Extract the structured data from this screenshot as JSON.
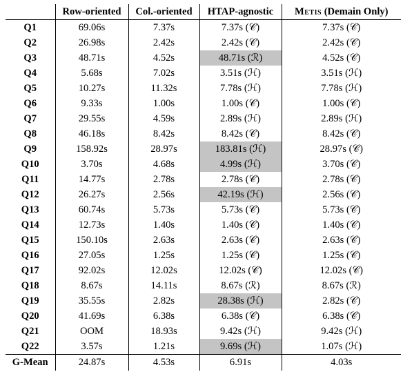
{
  "headers": {
    "query": "",
    "row": "Row-oriented",
    "col": "Col.-oriented",
    "htap": "HTAP-agnostic",
    "metis_name": "Metis",
    "metis_suffix": " (Demain Only)"
  },
  "rows": [
    {
      "q": "Q1",
      "row": "69.06s",
      "col": "7.37s",
      "htap": "7.37s",
      "htap_mark": "C",
      "htap_hl": false,
      "metis": "7.37s",
      "metis_mark": "C"
    },
    {
      "q": "Q2",
      "row": "26.98s",
      "col": "2.42s",
      "htap": "2.42s",
      "htap_mark": "C",
      "htap_hl": false,
      "metis": "2.42s",
      "metis_mark": "C"
    },
    {
      "q": "Q3",
      "row": "48.71s",
      "col": "4.52s",
      "htap": "48.71s",
      "htap_mark": "R",
      "htap_hl": true,
      "metis": "4.52s",
      "metis_mark": "C"
    },
    {
      "q": "Q4",
      "row": "5.68s",
      "col": "7.02s",
      "htap": "3.51s",
      "htap_mark": "H",
      "htap_hl": false,
      "metis": "3.51s",
      "metis_mark": "H"
    },
    {
      "q": "Q5",
      "row": "10.27s",
      "col": "11.32s",
      "htap": "7.78s",
      "htap_mark": "H",
      "htap_hl": false,
      "metis": "7.78s",
      "metis_mark": "H"
    },
    {
      "q": "Q6",
      "row": "9.33s",
      "col": "1.00s",
      "htap": "1.00s",
      "htap_mark": "C",
      "htap_hl": false,
      "metis": "1.00s",
      "metis_mark": "C"
    },
    {
      "q": "Q7",
      "row": "29.55s",
      "col": "4.59s",
      "htap": "2.89s",
      "htap_mark": "H",
      "htap_hl": false,
      "metis": "2.89s",
      "metis_mark": "H"
    },
    {
      "q": "Q8",
      "row": "46.18s",
      "col": "8.42s",
      "htap": "8.42s",
      "htap_mark": "C",
      "htap_hl": false,
      "metis": "8.42s",
      "metis_mark": "C"
    },
    {
      "q": "Q9",
      "row": "158.92s",
      "col": "28.97s",
      "htap": "183.81s",
      "htap_mark": "H",
      "htap_hl": true,
      "metis": "28.97s",
      "metis_mark": "C"
    },
    {
      "q": "Q10",
      "row": "3.70s",
      "col": "4.68s",
      "htap": "4.99s",
      "htap_mark": "H",
      "htap_hl": true,
      "metis": "3.70s",
      "metis_mark": "C"
    },
    {
      "q": "Q11",
      "row": "14.77s",
      "col": "2.78s",
      "htap": "2.78s",
      "htap_mark": "C",
      "htap_hl": false,
      "metis": "2.78s",
      "metis_mark": "C"
    },
    {
      "q": "Q12",
      "row": "26.27s",
      "col": "2.56s",
      "htap": "42.19s",
      "htap_mark": "H",
      "htap_hl": true,
      "metis": "2.56s",
      "metis_mark": "C"
    },
    {
      "q": "Q13",
      "row": "60.74s",
      "col": "5.73s",
      "htap": "5.73s",
      "htap_mark": "C",
      "htap_hl": false,
      "metis": "5.73s",
      "metis_mark": "C"
    },
    {
      "q": "Q14",
      "row": "12.73s",
      "col": "1.40s",
      "htap": "1.40s",
      "htap_mark": "C",
      "htap_hl": false,
      "metis": "1.40s",
      "metis_mark": "C"
    },
    {
      "q": "Q15",
      "row": "150.10s",
      "col": "2.63s",
      "htap": "2.63s",
      "htap_mark": "C",
      "htap_hl": false,
      "metis": "2.63s",
      "metis_mark": "C"
    },
    {
      "q": "Q16",
      "row": "27.05s",
      "col": "1.25s",
      "htap": "1.25s",
      "htap_mark": "C",
      "htap_hl": false,
      "metis": "1.25s",
      "metis_mark": "C"
    },
    {
      "q": "Q17",
      "row": "92.02s",
      "col": "12.02s",
      "htap": "12.02s",
      "htap_mark": "C",
      "htap_hl": false,
      "metis": "12.02s",
      "metis_mark": "C"
    },
    {
      "q": "Q18",
      "row": "8.67s",
      "col": "14.11s",
      "htap": "8.67s",
      "htap_mark": "R",
      "htap_hl": false,
      "metis": "8.67s",
      "metis_mark": "R"
    },
    {
      "q": "Q19",
      "row": "35.55s",
      "col": "2.82s",
      "htap": "28.38s",
      "htap_mark": "H",
      "htap_hl": true,
      "metis": "2.82s",
      "metis_mark": "C"
    },
    {
      "q": "Q20",
      "row": "41.69s",
      "col": "6.38s",
      "htap": "6.38s",
      "htap_mark": "C",
      "htap_hl": false,
      "metis": "6.38s",
      "metis_mark": "C"
    },
    {
      "q": "Q21",
      "row": "OOM",
      "col": "18.93s",
      "htap": "9.42s",
      "htap_mark": "H",
      "htap_hl": false,
      "metis": "9.42s",
      "metis_mark": "H"
    },
    {
      "q": "Q22",
      "row": "3.57s",
      "col": "1.21s",
      "htap": "9.69s",
      "htap_mark": "H",
      "htap_hl": true,
      "metis": "1.07s",
      "metis_mark": "H"
    }
  ],
  "gmean": {
    "label": "G-Mean",
    "row": "24.87s",
    "col": "4.53s",
    "htap": "6.91s",
    "metis": "4.03s"
  },
  "mark_glyphs": {
    "C": "𝒞",
    "R": "ℛ",
    "H": "ℋ"
  },
  "colors": {
    "highlight": "#c4c4c4"
  }
}
